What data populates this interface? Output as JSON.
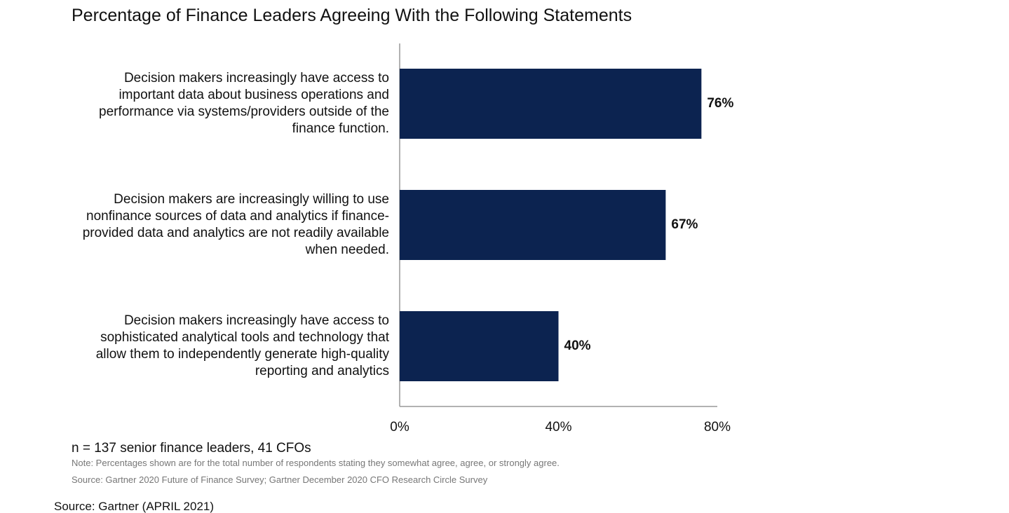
{
  "chart_data": {
    "type": "barh",
    "title": "Percentage of Finance Leaders Agreeing With the Following Statements",
    "categories": [
      "Decision makers increasingly have access to important data about business operations and performance via systems/providers outside of the finance function.",
      "Decision makers are increasingly willing to use nonfinance sources of data and analytics if finance-provided data and analytics are not readily available when needed.",
      "Decision makers increasingly have access to sophisticated analytical tools and technology that allow them to independently generate high-quality reporting and analytics"
    ],
    "values": [
      76,
      67,
      40
    ],
    "value_labels": [
      "76%",
      "67%",
      "40%"
    ],
    "color": "#0c2350",
    "xlim": [
      0,
      80
    ],
    "xticks": [
      {
        "value": 0,
        "label": "0%"
      },
      {
        "value": 40,
        "label": "40%"
      },
      {
        "value": 80,
        "label": "80%"
      }
    ],
    "grid": false,
    "sample": "n = 137 senior finance leaders, 41 CFOs",
    "note": "Note: Percentages shown are for the total number of respondents stating they somewhat agree, agree, or strongly agree.",
    "source": "Source: Gartner 2020 Future of Finance Survey; Gartner December 2020 CFO Research Circle Survey"
  },
  "caption": "Source: Gartner (APRIL 2021)"
}
